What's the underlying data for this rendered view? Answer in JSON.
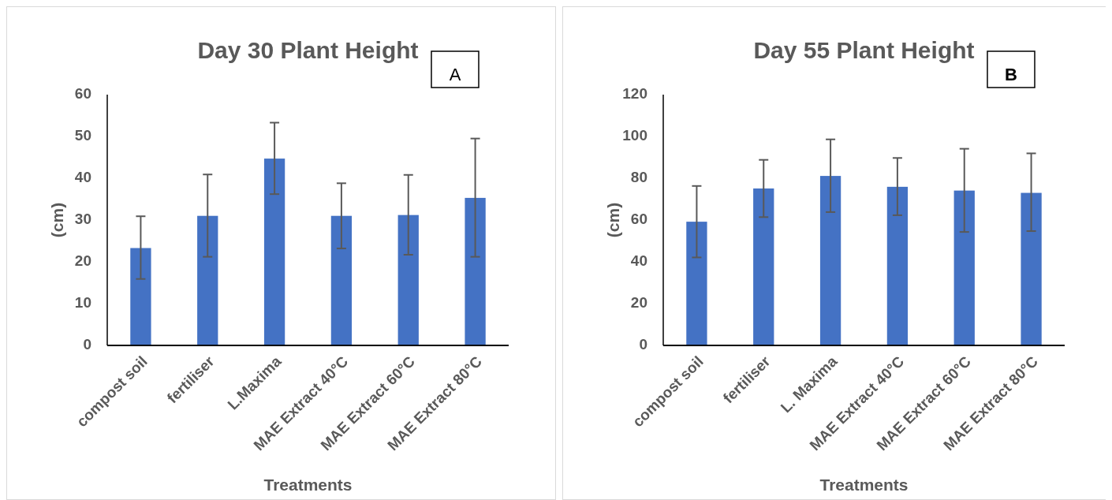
{
  "chart_data": [
    {
      "type": "bar",
      "title": "Day 30 Plant Height",
      "xlabel": "Treatments",
      "ylabel": "(cm)",
      "annotations": [
        "A"
      ],
      "categories": [
        "compost soil",
        "fertiliser",
        "L.Maxima",
        "MAE Extract 40°C",
        "MAE Extract 60°C",
        "MAE Extract 80°C"
      ],
      "color": "#4472c4",
      "values": [
        23.3,
        31,
        44.7,
        31,
        31.2,
        35.3
      ],
      "errors": [
        [
          15.9,
          30.9
        ],
        [
          21.2,
          40.9
        ],
        [
          36.2,
          53.3
        ],
        [
          23.2,
          38.8
        ],
        [
          21.7,
          40.8
        ],
        [
          21.2,
          49.5
        ]
      ],
      "ylim": [
        0,
        60
      ],
      "yticks": [
        0,
        10,
        20,
        30,
        40,
        50,
        60
      ],
      "grid": false
    },
    {
      "type": "bar",
      "title": "Day 55 Plant Height",
      "xlabel": "Treatments",
      "ylabel": "(cm)",
      "annotations": [
        "B"
      ],
      "categories": [
        "compost soil",
        "fertiliser",
        "L. Maxima",
        "MAE Extract 40°C",
        "MAE Extract 60°C",
        "MAE Extract 80°C"
      ],
      "color": "#4472c4",
      "values": [
        59.2,
        75.1,
        81.1,
        75.9,
        74.1,
        73.0
      ],
      "errors": [
        [
          42.1,
          76.3
        ],
        [
          61.4,
          88.8
        ],
        [
          63.8,
          98.6
        ],
        [
          62.3,
          89.7
        ],
        [
          54.3,
          94.1
        ],
        [
          54.7,
          91.9
        ]
      ],
      "ylim": [
        0,
        120
      ],
      "yticks": [
        0,
        20,
        40,
        60,
        80,
        100,
        120
      ],
      "grid": false
    }
  ]
}
